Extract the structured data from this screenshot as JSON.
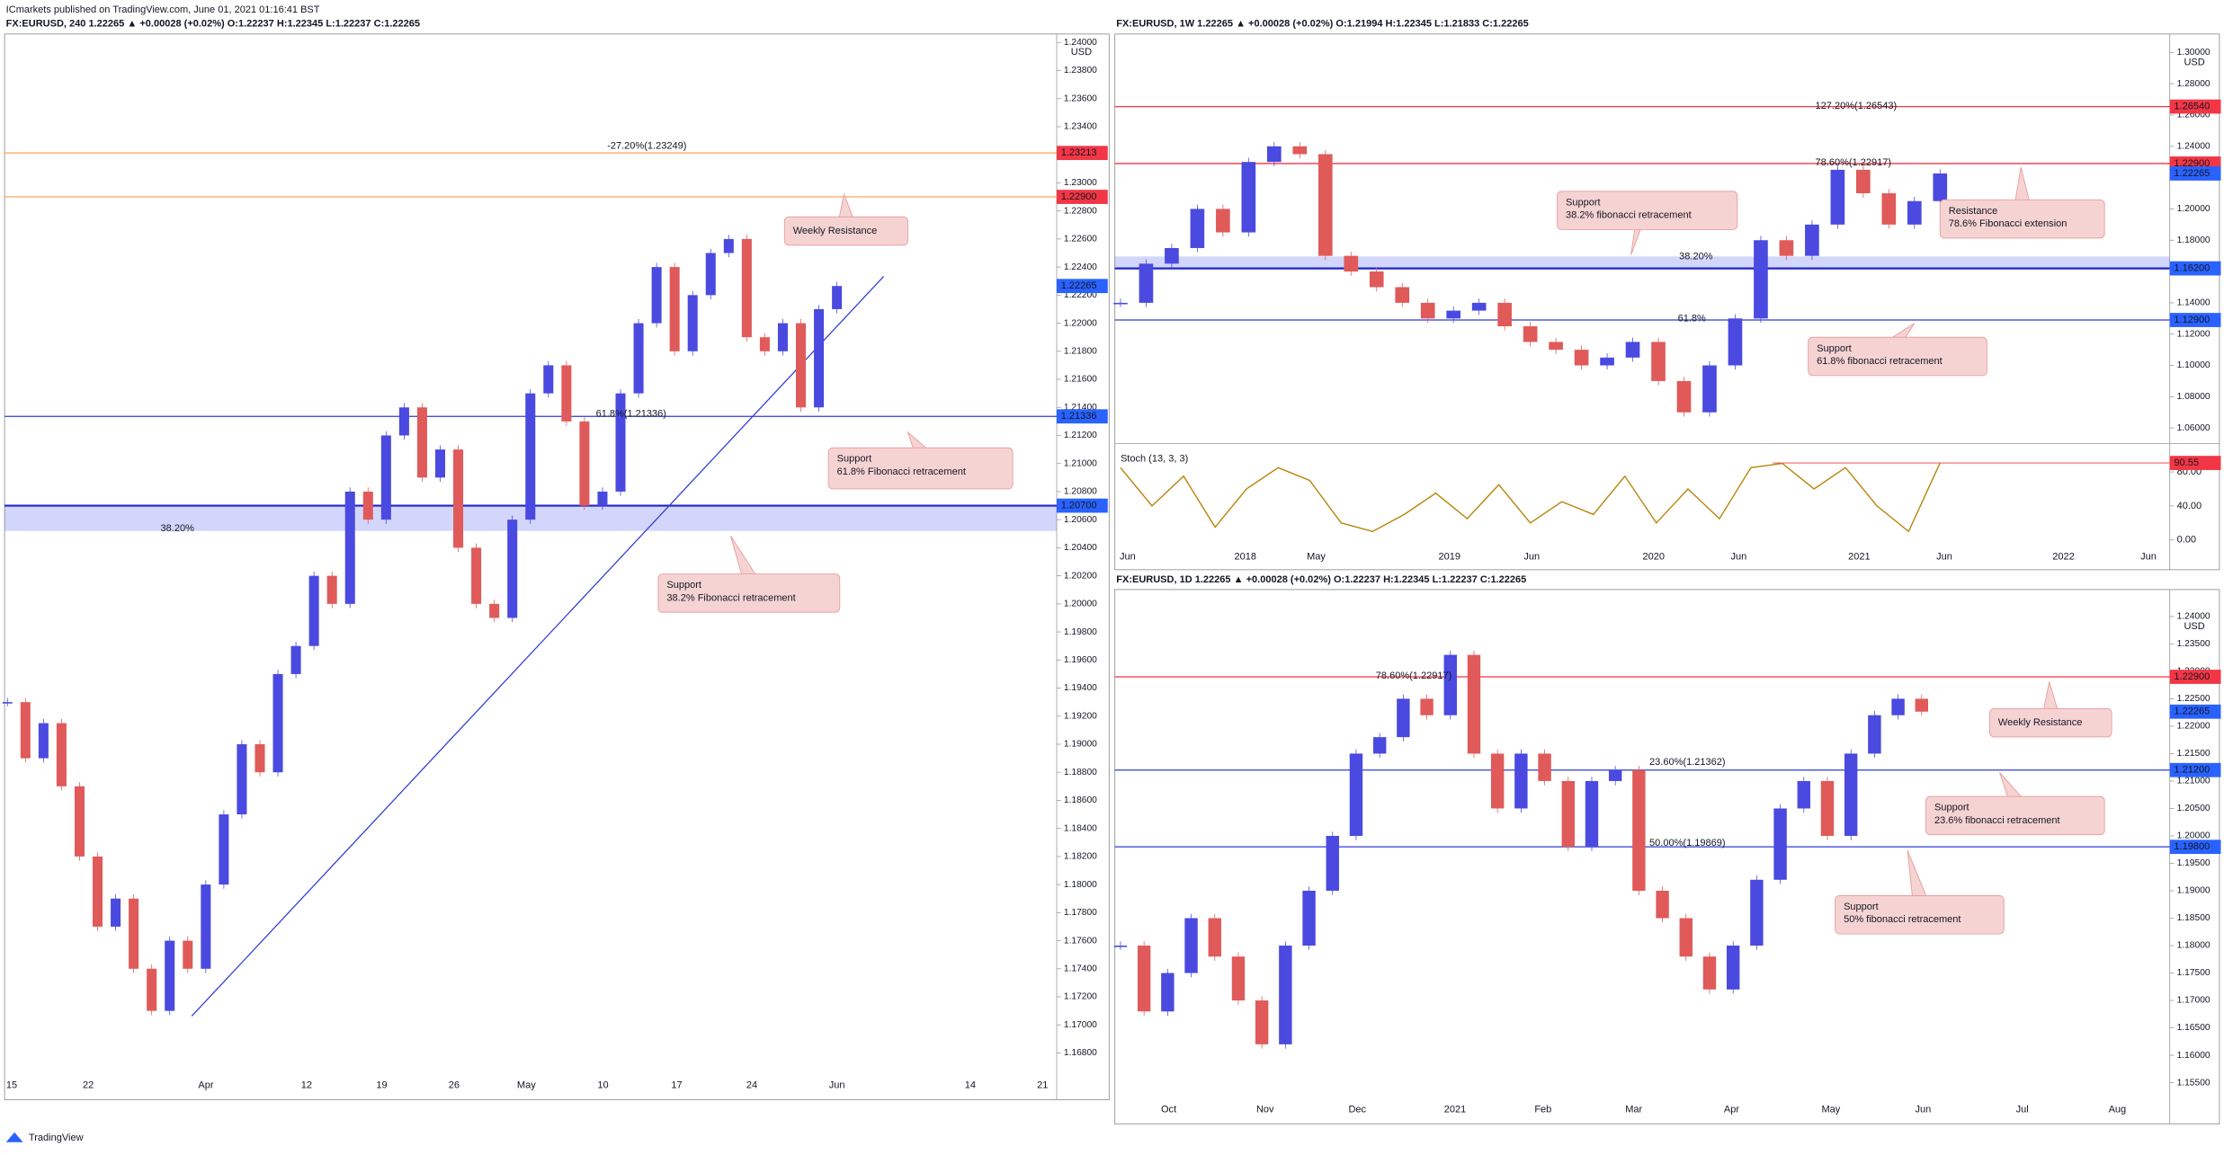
{
  "header": "ICmarkets published on TradingView.com, June 01, 2021 01:16:41 BST",
  "footer": "TradingView",
  "panels": [
    {
      "title": "FX:EURUSD, 240  1.22265 ▲ +0.00028 (+0.02%)  O:1.22237  H:1.22345  L:1.22237  C:1.22265",
      "currency": "USD",
      "ylim": [
        1.168,
        1.24
      ],
      "yticks": [
        {
          "value": 1.24,
          "label": "1.24000"
        },
        {
          "value": 1.238,
          "label": "1.23800"
        },
        {
          "value": 1.236,
          "label": "1.23600"
        },
        {
          "value": 1.234,
          "label": "1.23400"
        },
        {
          "value": 1.232,
          "label": "1.23200"
        },
        {
          "value": 1.23,
          "label": "1.23000"
        },
        {
          "value": 1.228,
          "label": "1.22800"
        },
        {
          "value": 1.226,
          "label": "1.22600"
        },
        {
          "value": 1.224,
          "label": "1.22400"
        },
        {
          "value": 1.222,
          "label": "1.22200"
        },
        {
          "value": 1.22,
          "label": "1.22000"
        },
        {
          "value": 1.218,
          "label": "1.21800"
        },
        {
          "value": 1.216,
          "label": "1.21600"
        },
        {
          "value": 1.214,
          "label": "1.21400"
        },
        {
          "value": 1.212,
          "label": "1.21200"
        },
        {
          "value": 1.21,
          "label": "1.21000"
        },
        {
          "value": 1.208,
          "label": "1.20800"
        },
        {
          "value": 1.206,
          "label": "1.20600"
        },
        {
          "value": 1.204,
          "label": "1.20400"
        },
        {
          "value": 1.202,
          "label": "1.20200"
        },
        {
          "value": 1.2,
          "label": "1.20000"
        },
        {
          "value": 1.198,
          "label": "1.19800"
        },
        {
          "value": 1.196,
          "label": "1.19600"
        },
        {
          "value": 1.194,
          "label": "1.19400"
        },
        {
          "value": 1.192,
          "label": "1.19200"
        },
        {
          "value": 1.19,
          "label": "1.19000"
        },
        {
          "value": 1.188,
          "label": "1.18800"
        },
        {
          "value": 1.186,
          "label": "1.18600"
        },
        {
          "value": 1.184,
          "label": "1.18400"
        },
        {
          "value": 1.182,
          "label": "1.18200"
        },
        {
          "value": 1.18,
          "label": "1.18000"
        },
        {
          "value": 1.178,
          "label": "1.17800"
        },
        {
          "value": 1.176,
          "label": "1.17600"
        },
        {
          "value": 1.174,
          "label": "1.17400"
        },
        {
          "value": 1.172,
          "label": "1.17200"
        },
        {
          "value": 1.17,
          "label": "1.17000"
        },
        {
          "value": 1.168,
          "label": "1.16800"
        }
      ],
      "xlabels": [
        "15",
        "22",
        "Apr",
        "12",
        "19",
        "26",
        "May",
        "10",
        "17",
        "24",
        "Jun",
        "14",
        "21"
      ],
      "closes": [
        1.193,
        1.189,
        1.1915,
        1.187,
        1.182,
        1.177,
        1.179,
        1.174,
        1.171,
        1.176,
        1.174,
        1.18,
        1.185,
        1.19,
        1.188,
        1.195,
        1.197,
        1.202,
        1.2,
        1.208,
        1.206,
        1.212,
        1.214,
        1.209,
        1.211,
        1.204,
        1.2,
        1.199,
        1.206,
        1.215,
        1.217,
        1.213,
        1.207,
        1.208,
        1.215,
        1.22,
        1.224,
        1.218,
        1.222,
        1.225,
        1.226,
        1.219,
        1.218,
        1.22,
        1.214,
        1.221,
        1.22265
      ],
      "up_color": "#4a4ae0",
      "down_color": "#e05a5a",
      "levels": [
        {
          "value": 1.23213,
          "label": "1.23213",
          "color": "#f23645",
          "line": "#f7a35c"
        },
        {
          "value": 1.229,
          "label": "1.22900",
          "color": "#f23645",
          "line": "#f7a35c"
        },
        {
          "value": 1.22265,
          "label": "1.22265",
          "color": "#2962ff"
        },
        {
          "value": 1.21336,
          "label": "1.21336",
          "color": "#2962ff",
          "line": "#2f3bd6"
        },
        {
          "value": 1.207,
          "label": "1.20700",
          "color": "#2962ff",
          "line": "#1c25c9",
          "zone": 1.2052
        }
      ],
      "fib": [
        "-27.20%(1.23249)",
        "61.8%(1.21336)",
        "38.20%"
      ],
      "notes": [
        {
          "lines": [
            "Weekly Resistance"
          ]
        },
        {
          "lines": [
            "Support",
            "61.8% Fibonacci retracement"
          ]
        },
        {
          "lines": [
            "Support",
            "38.2% Fibonacci retracement"
          ]
        }
      ]
    },
    {
      "title": "FX:EURUSD, 1W  1.22265 ▲ +0.00028 (+0.02%)  O:1.21994  H:1.22345  L:1.21833  C:1.22265",
      "currency": "USD",
      "ylim": [
        1.06,
        1.3
      ],
      "yticks": [
        {
          "value": 1.3,
          "label": "1.30000"
        },
        {
          "value": 1.28,
          "label": "1.28000"
        },
        {
          "value": 1.26,
          "label": "1.26000"
        },
        {
          "value": 1.24,
          "label": "1.24000"
        },
        {
          "value": 1.22,
          "label": "1.22000"
        },
        {
          "value": 1.2,
          "label": "1.20000"
        },
        {
          "value": 1.18,
          "label": "1.18000"
        },
        {
          "value": 1.16,
          "label": "1.16000"
        },
        {
          "value": 1.14,
          "label": "1.14000"
        },
        {
          "value": 1.12,
          "label": "1.12000"
        },
        {
          "value": 1.1,
          "label": "1.10000"
        },
        {
          "value": 1.08,
          "label": "1.08000"
        },
        {
          "value": 1.06,
          "label": "1.06000"
        }
      ],
      "xlabels": [
        "Jun",
        "2018",
        "May",
        "2019",
        "Jun",
        "2020",
        "Jun",
        "2021",
        "Jun",
        "2022",
        "Jun"
      ],
      "closes": [
        1.14,
        1.165,
        1.175,
        1.2,
        1.185,
        1.23,
        1.24,
        1.235,
        1.17,
        1.16,
        1.15,
        1.14,
        1.13,
        1.135,
        1.14,
        1.125,
        1.115,
        1.11,
        1.1,
        1.105,
        1.115,
        1.09,
        1.07,
        1.1,
        1.13,
        1.18,
        1.17,
        1.19,
        1.225,
        1.21,
        1.19,
        1.205,
        1.22265
      ],
      "up_color": "#4a4ae0",
      "down_color": "#e05a5a",
      "levels": [
        {
          "value": 1.2654,
          "label": "1.26540",
          "color": "#f23645",
          "line": "#f23645"
        },
        {
          "value": 1.229,
          "label": "1.22900",
          "color": "#f23645",
          "line": "#f23645"
        },
        {
          "value": 1.22265,
          "label": "1.22265",
          "color": "#2962ff"
        },
        {
          "value": 1.162,
          "label": "1.16200",
          "color": "#2962ff",
          "line": "#1c25c9",
          "zone": 1.1696
        },
        {
          "value": 1.129,
          "label": "1.12900",
          "color": "#2962ff",
          "line": "#2f3bd6"
        }
      ],
      "fib": [
        "127.20%(1.26543)",
        "78.60%(1.22917)",
        "38.20%",
        "61.8%"
      ],
      "notes": [
        {
          "lines": [
            "Support",
            "38.2% fibonacci retracement"
          ]
        },
        {
          "lines": [
            "Resistance",
            "78.6% Fibonacci extension"
          ]
        },
        {
          "lines": [
            "Support",
            "61.8% fibonacci retracement"
          ]
        }
      ],
      "stoch": {
        "name": "Stoch (13, 3, 3)",
        "ylim": [
          0,
          100
        ],
        "color": "#b8860b",
        "yticks": [
          {
            "value": 80,
            "label": "80.00"
          },
          {
            "value": 40,
            "label": "40.00"
          },
          {
            "value": 0,
            "label": "0.00"
          }
        ],
        "values": [
          85,
          40,
          75,
          15,
          60,
          85,
          70,
          20,
          10,
          30,
          55,
          25,
          65,
          20,
          45,
          30,
          75,
          20,
          60,
          25,
          85,
          90,
          60,
          85,
          40,
          10,
          90.55
        ],
        "last": {
          "value": 90.55,
          "label": "90.55",
          "color": "#f23645"
        }
      }
    },
    {
      "title": "FX:EURUSD, 1D  1.22265 ▲ +0.00028 (+0.02%)  O:1.22237  H:1.22345  L:1.22237  C:1.22265",
      "currency": "USD",
      "ylim": [
        1.155,
        1.24
      ],
      "yticks": [
        {
          "value": 1.24,
          "label": "1.24000"
        },
        {
          "value": 1.235,
          "label": "1.23500"
        },
        {
          "value": 1.23,
          "label": "1.23000"
        },
        {
          "value": 1.225,
          "label": "1.22500"
        },
        {
          "value": 1.22,
          "label": "1.22000"
        },
        {
          "value": 1.215,
          "label": "1.21500"
        },
        {
          "value": 1.21,
          "label": "1.21000"
        },
        {
          "value": 1.205,
          "label": "1.20500"
        },
        {
          "value": 1.2,
          "label": "1.20000"
        },
        {
          "value": 1.195,
          "label": "1.19500"
        },
        {
          "value": 1.19,
          "label": "1.19000"
        },
        {
          "value": 1.185,
          "label": "1.18500"
        },
        {
          "value": 1.18,
          "label": "1.18000"
        },
        {
          "value": 1.175,
          "label": "1.17500"
        },
        {
          "value": 1.17,
          "label": "1.17000"
        },
        {
          "value": 1.165,
          "label": "1.16500"
        },
        {
          "value": 1.16,
          "label": "1.16000"
        },
        {
          "value": 1.155,
          "label": "1.15500"
        }
      ],
      "xlabels": [
        "Oct",
        "Nov",
        "Dec",
        "2021",
        "Feb",
        "Mar",
        "Apr",
        "May",
        "Jun",
        "Jul",
        "Aug"
      ],
      "closes": [
        1.18,
        1.168,
        1.175,
        1.185,
        1.178,
        1.17,
        1.162,
        1.18,
        1.19,
        1.2,
        1.215,
        1.218,
        1.225,
        1.222,
        1.233,
        1.215,
        1.205,
        1.215,
        1.21,
        1.198,
        1.21,
        1.212,
        1.19,
        1.185,
        1.178,
        1.172,
        1.18,
        1.192,
        1.205,
        1.21,
        1.2,
        1.215,
        1.222,
        1.225,
        1.22265
      ],
      "up_color": "#4a4ae0",
      "down_color": "#e05a5a",
      "levels": [
        {
          "value": 1.229,
          "label": "1.22900",
          "color": "#f23645",
          "line": "#f23645"
        },
        {
          "value": 1.22265,
          "label": "1.22265",
          "color": "#2962ff"
        },
        {
          "value": 1.212,
          "label": "1.21200",
          "color": "#2962ff",
          "line": "#2f3bd6"
        },
        {
          "value": 1.198,
          "label": "1.19800",
          "color": "#2962ff",
          "line": "#2f3bd6"
        }
      ],
      "fib": [
        "78.60%(1.22917)",
        "23.60%(1.21362)",
        "50.00%(1.19869)"
      ],
      "notes": [
        {
          "lines": [
            "Weekly Resistance"
          ]
        },
        {
          "lines": [
            "Support",
            "23.6% fibonacci retracement"
          ]
        },
        {
          "lines": [
            "Support",
            "50% fibonacci retracement"
          ]
        }
      ]
    }
  ]
}
